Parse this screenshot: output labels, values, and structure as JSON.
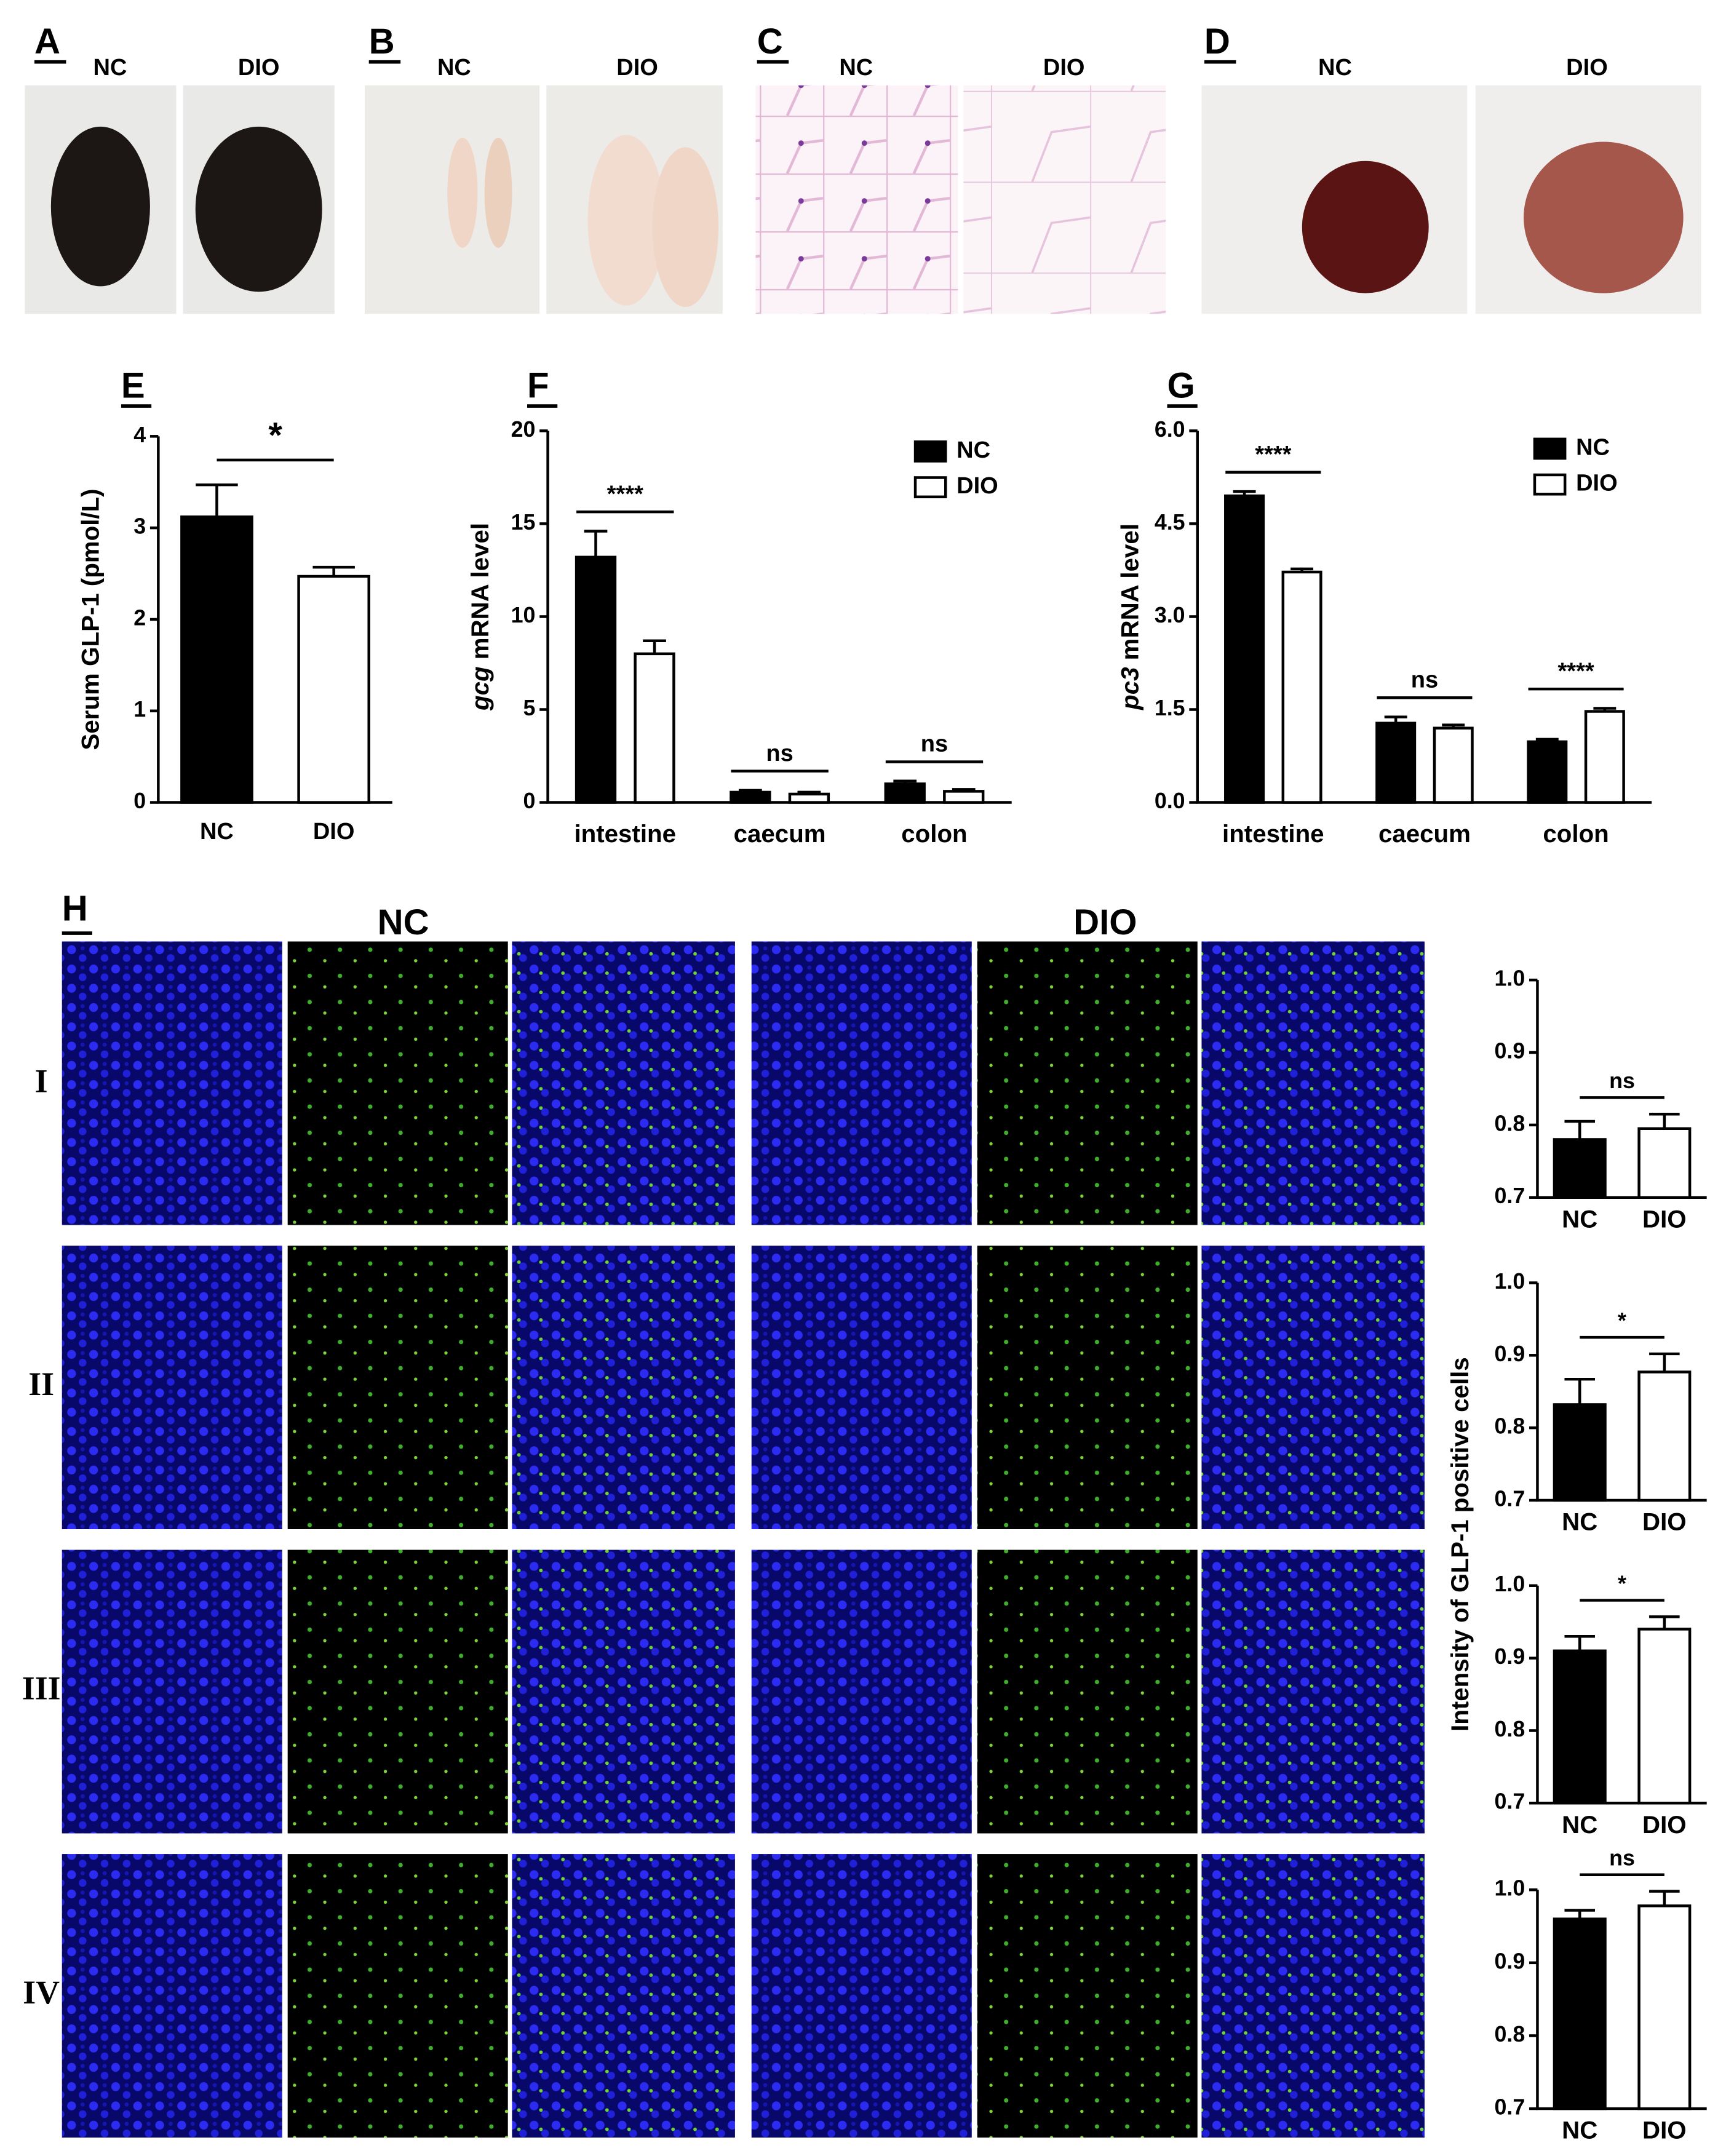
{
  "photos": [
    {
      "panel": "A",
      "labels": [
        "NC",
        "DIO"
      ]
    },
    {
      "panel": "B",
      "labels": [
        "NC",
        "DIO"
      ]
    },
    {
      "panel": "C",
      "labels": [
        "NC",
        "DIO"
      ]
    },
    {
      "panel": "D",
      "labels": [
        "NC",
        "DIO"
      ]
    }
  ],
  "micro": {
    "panel": "H",
    "groups": [
      "NC",
      "DIO"
    ],
    "rows": [
      "I",
      "II",
      "III",
      "IV"
    ],
    "ylabel": "Intensity of GLP-1 positive cells"
  },
  "chart_data": [
    {
      "type": "bar",
      "panel": "E",
      "ylabel": "Serum GLP-1 (pmol/L)",
      "categories": [
        "NC",
        "DIO"
      ],
      "values": [
        3.12,
        2.47
      ],
      "errors": [
        0.35,
        0.1
      ],
      "colors": [
        "#000000",
        "#ffffff"
      ],
      "ylim": [
        0,
        4
      ],
      "yticks": [
        0,
        1,
        2,
        3,
        4
      ],
      "annotation": "*"
    },
    {
      "type": "grouped_bar",
      "panel": "F",
      "ylabel": {
        "gene": "gcg",
        "text": "mRNA level"
      },
      "categories": [
        "intestine",
        "caecum",
        "colon"
      ],
      "series": [
        {
          "name": "NC",
          "color": "#000000",
          "values": [
            13.2,
            0.55,
            1.0
          ],
          "errors": [
            1.4,
            0.1,
            0.15
          ]
        },
        {
          "name": "DIO",
          "color": "#ffffff",
          "values": [
            8.0,
            0.45,
            0.6
          ],
          "errors": [
            0.7,
            0.1,
            0.1
          ]
        }
      ],
      "significance": [
        "****",
        "ns",
        "ns"
      ],
      "ylim": [
        0,
        20
      ],
      "yticks": [
        0,
        5,
        10,
        15,
        20
      ],
      "legend": "top-right"
    },
    {
      "type": "grouped_bar",
      "panel": "G",
      "ylabel": {
        "gene": "pc3",
        "text": "mRNA level"
      },
      "categories": [
        "intestine",
        "caecum",
        "colon"
      ],
      "series": [
        {
          "name": "NC",
          "color": "#000000",
          "values": [
            4.95,
            1.28,
            0.98
          ],
          "errors": [
            0.07,
            0.1,
            0.04
          ]
        },
        {
          "name": "DIO",
          "color": "#ffffff",
          "values": [
            3.72,
            1.2,
            1.47
          ],
          "errors": [
            0.05,
            0.05,
            0.05
          ]
        }
      ],
      "significance": [
        "****",
        "ns",
        "****"
      ],
      "ylim": [
        0,
        6
      ],
      "yticks": [
        {
          "value": 0,
          "label": "0.0"
        },
        {
          "value": 1.5,
          "label": "1.5"
        },
        {
          "value": 3,
          "label": "3.0"
        },
        {
          "value": 4.5,
          "label": "4.5"
        },
        {
          "value": 6,
          "label": "6.0"
        }
      ],
      "legend": "top-right"
    },
    {
      "type": "bar",
      "categories": [
        "NC",
        "DIO"
      ],
      "values": [
        0.78,
        0.795
      ],
      "errors": [
        0.025,
        0.02
      ],
      "colors": [
        "#000000",
        "#ffffff"
      ],
      "ylim": [
        0.7,
        1.0
      ],
      "yticks": [
        0.7,
        0.8,
        0.9,
        {
          "value": 1.0,
          "label": "1.0"
        }
      ],
      "annotation": "ns"
    },
    {
      "type": "bar",
      "categories": [
        "NC",
        "DIO"
      ],
      "values": [
        0.832,
        0.877
      ],
      "errors": [
        0.035,
        0.025
      ],
      "colors": [
        "#000000",
        "#ffffff"
      ],
      "ylim": [
        0.7,
        1.0
      ],
      "yticks": [
        0.7,
        0.8,
        0.9,
        {
          "value": 1.0,
          "label": "1.0"
        }
      ],
      "annotation": "*"
    },
    {
      "type": "bar",
      "categories": [
        "NC",
        "DIO"
      ],
      "values": [
        0.91,
        0.94
      ],
      "errors": [
        0.02,
        0.017
      ],
      "colors": [
        "#000000",
        "#ffffff"
      ],
      "ylim": [
        0.7,
        1.0
      ],
      "yticks": [
        0.7,
        0.8,
        0.9,
        {
          "value": 1.0,
          "label": "1.0"
        }
      ],
      "annotation": "*"
    },
    {
      "type": "bar",
      "categories": [
        "NC",
        "DIO"
      ],
      "values": [
        0.96,
        0.978
      ],
      "errors": [
        0.012,
        0.02
      ],
      "colors": [
        "#000000",
        "#ffffff"
      ],
      "ylim": [
        0.7,
        1.0
      ],
      "yticks": [
        0.7,
        0.8,
        0.9,
        {
          "value": 1.0,
          "label": "1.0"
        }
      ],
      "annotation": "ns"
    }
  ]
}
